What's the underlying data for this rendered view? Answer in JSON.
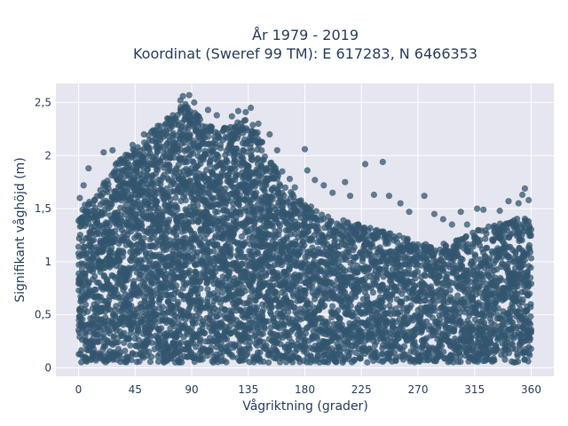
{
  "chart_data": {
    "type": "scatter",
    "title_line1": "År 1979 - 2019",
    "title_line2": "Koordinat (Sweref 99 TM): E 617283, N 6466353",
    "xlabel": "Vågriktning (grader)",
    "ylabel": "Signifikant våghöjd (m)",
    "xlim": [
      -18,
      378
    ],
    "ylim": [
      -0.08,
      2.68
    ],
    "x_ticks": [
      0,
      45,
      90,
      135,
      180,
      225,
      270,
      315,
      360
    ],
    "x_tick_labels": [
      "0",
      "45",
      "90",
      "135",
      "180",
      "225",
      "270",
      "315",
      "360"
    ],
    "y_ticks": [
      0,
      0.5,
      1,
      1.5,
      2,
      2.5
    ],
    "y_tick_labels": [
      "0",
      "0,5",
      "1",
      "1,5",
      "2",
      "2,5"
    ],
    "grid": true,
    "colors": {
      "marker": "#33566f",
      "plot_background": "#e5e6ef",
      "grid": "#ffffff",
      "text": "#2a3f5f"
    },
    "series": [
      {
        "envelope_x": [
          0,
          10,
          20,
          30,
          45,
          60,
          75,
          85,
          90,
          100,
          110,
          120,
          130,
          140,
          150,
          160,
          170,
          180,
          195,
          210,
          225,
          240,
          255,
          270,
          285,
          300,
          315,
          330,
          345,
          360
        ],
        "envelope_max": [
          1.5,
          1.6,
          1.75,
          1.95,
          2.1,
          2.25,
          2.4,
          2.5,
          2.45,
          2.3,
          2.25,
          2.3,
          2.35,
          2.3,
          2.05,
          1.8,
          1.65,
          1.55,
          1.45,
          1.4,
          1.35,
          1.3,
          1.25,
          1.2,
          1.15,
          1.2,
          1.3,
          1.35,
          1.4,
          1.45
        ],
        "min_value": 0.05,
        "outliers": [
          [
            1,
            1.6
          ],
          [
            4,
            1.72
          ],
          [
            8,
            1.88
          ],
          [
            20,
            2.03
          ],
          [
            27,
            2.05
          ],
          [
            33,
            1.96
          ],
          [
            43,
            2.1
          ],
          [
            52,
            2.2
          ],
          [
            63,
            2.28
          ],
          [
            75,
            2.38
          ],
          [
            81,
            2.52
          ],
          [
            83,
            2.56
          ],
          [
            88,
            2.57
          ],
          [
            92,
            2.5
          ],
          [
            103,
            2.43
          ],
          [
            110,
            2.38
          ],
          [
            122,
            2.37
          ],
          [
            127,
            2.42
          ],
          [
            133,
            2.41
          ],
          [
            137,
            2.45
          ],
          [
            143,
            2.3
          ],
          [
            152,
            2.2
          ],
          [
            158,
            2.05
          ],
          [
            162,
            1.85
          ],
          [
            168,
            1.78
          ],
          [
            172,
            1.7
          ],
          [
            180,
            2.06
          ],
          [
            182,
            1.86
          ],
          [
            188,
            1.77
          ],
          [
            195,
            1.72
          ],
          [
            202,
            1.65
          ],
          [
            212,
            1.75
          ],
          [
            216,
            1.62
          ],
          [
            228,
            1.92
          ],
          [
            235,
            1.63
          ],
          [
            242,
            1.94
          ],
          [
            247,
            1.62
          ],
          [
            256,
            1.55
          ],
          [
            263,
            1.47
          ],
          [
            275,
            1.62
          ],
          [
            283,
            1.45
          ],
          [
            290,
            1.4
          ],
          [
            297,
            1.35
          ],
          [
            304,
            1.47
          ],
          [
            309,
            1.35
          ],
          [
            317,
            1.5
          ],
          [
            322,
            1.49
          ],
          [
            335,
            1.48
          ],
          [
            342,
            1.57
          ],
          [
            350,
            1.55
          ],
          [
            353,
            1.63
          ],
          [
            355,
            1.69
          ],
          [
            358,
            1.58
          ]
        ]
      }
    ]
  }
}
